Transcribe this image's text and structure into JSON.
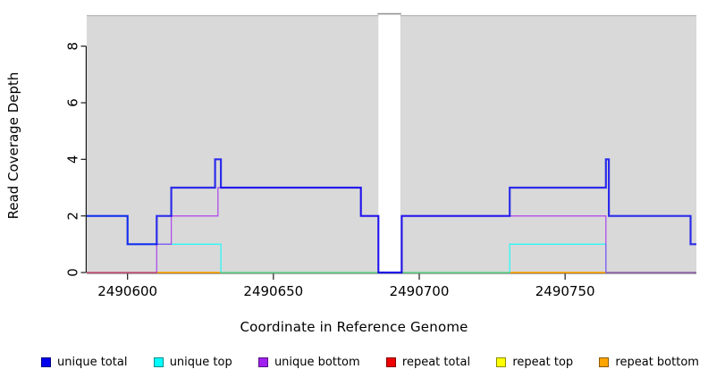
{
  "chart_data": {
    "type": "line",
    "subtype": "step-coverage-plot",
    "title": "",
    "xlabel": "Coordinate in Reference Genome",
    "ylabel": "Read Coverage Depth",
    "xlim": [
      2490586,
      2490795
    ],
    "ylim": [
      0,
      9
    ],
    "x_ticks": [
      2490600,
      2490650,
      2490700,
      2490750
    ],
    "x_tick_labels": [
      "2490600",
      "2490650",
      "2490700",
      "2490750"
    ],
    "y_ticks": [
      0,
      2,
      4,
      6,
      8
    ],
    "y_tick_labels": [
      "0",
      "2",
      "4",
      "6",
      "8"
    ],
    "grid": "off",
    "plot_bg_color": "#d9d9d9",
    "axis_color": "#1a1a1a",
    "no_data_gap": {
      "x_start": 2490686,
      "x_end": 2490693.5
    },
    "series": [
      {
        "name": "repeat total",
        "color": "#EE0000",
        "width": 1.2,
        "opacity": 0.9,
        "points": [
          [
            2490586,
            0
          ]
        ]
      },
      {
        "name": "repeat top",
        "color": "#FFFF00",
        "width": 1.2,
        "opacity": 0.9,
        "points": [
          [
            2490586,
            0
          ]
        ]
      },
      {
        "name": "repeat bottom",
        "color": "#FFA500",
        "width": 1.4,
        "opacity": 0.95,
        "points": [
          [
            2490586,
            0
          ]
        ]
      },
      {
        "name": "unique top",
        "color": "#00FFFF",
        "width": 1.3,
        "opacity": 0.8,
        "points": [
          [
            2490586,
            2
          ],
          [
            2490600,
            1
          ],
          [
            2490632,
            0
          ],
          [
            2490731,
            1
          ],
          [
            2490764,
            0
          ]
        ]
      },
      {
        "name": "unique bottom",
        "color": "#A020F0",
        "width": 1.3,
        "opacity": 0.75,
        "points": [
          [
            2490586,
            0
          ],
          [
            2490610,
            1
          ],
          [
            2490615,
            2
          ],
          [
            2490631,
            3
          ],
          [
            2490680,
            2
          ],
          [
            2490686,
            0
          ],
          [
            2490694,
            2
          ],
          [
            2490764,
            0
          ]
        ]
      },
      {
        "name": "unique total",
        "color": "#0000EE",
        "width": 2.2,
        "opacity": 0.8,
        "points": [
          [
            2490586,
            2
          ],
          [
            2490600,
            1
          ],
          [
            2490610,
            2
          ],
          [
            2490615,
            3
          ],
          [
            2490630,
            4
          ],
          [
            2490632,
            3
          ],
          [
            2490680,
            2
          ],
          [
            2490686,
            0
          ],
          [
            2490694,
            2
          ],
          [
            2490731,
            3
          ],
          [
            2490764,
            4
          ],
          [
            2490765,
            2
          ],
          [
            2490793,
            1
          ]
        ]
      }
    ],
    "legend": [
      {
        "label": "unique total",
        "color": "#0000EE"
      },
      {
        "label": "unique top",
        "color": "#00FFFF"
      },
      {
        "label": "unique bottom",
        "color": "#A020F0"
      },
      {
        "label": "repeat total",
        "color": "#EE0000"
      },
      {
        "label": "repeat top",
        "color": "#FFFF00"
      },
      {
        "label": "repeat bottom",
        "color": "#FFA500"
      }
    ],
    "legend_position": "bottom"
  }
}
